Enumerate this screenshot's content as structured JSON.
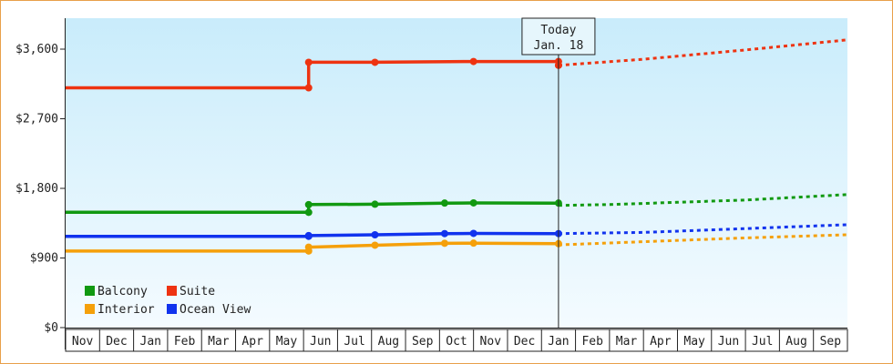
{
  "chart_data": {
    "type": "line",
    "title": "",
    "xlabel": "",
    "ylabel": "",
    "ylim": [
      0,
      4000
    ],
    "yticks": [
      {
        "value": 0,
        "label": "$0"
      },
      {
        "value": 900,
        "label": "$900"
      },
      {
        "value": 1800,
        "label": "$1,800"
      },
      {
        "value": 2700,
        "label": "$2,700"
      },
      {
        "value": 3600,
        "label": "$3,600"
      }
    ],
    "months": [
      "Nov",
      "Dec",
      "Jan",
      "Feb",
      "Mar",
      "Apr",
      "May",
      "Jun",
      "Jul",
      "Aug",
      "Sep",
      "Oct",
      "Nov",
      "Dec",
      "Jan",
      "Feb",
      "Mar",
      "Apr",
      "May",
      "Jun",
      "Jul",
      "Aug",
      "Sep"
    ],
    "today": {
      "line1": "Today",
      "line2": "Jan. 18",
      "x": 14.5
    },
    "legend_position": "bottom-left",
    "grid": false,
    "series": [
      {
        "name": "Balcony",
        "color": "#119911",
        "points": [
          [
            0,
            1490
          ],
          [
            7.15,
            1490
          ],
          [
            7.15,
            1590
          ],
          [
            9.1,
            1595
          ],
          [
            11.15,
            1610
          ],
          [
            12,
            1612
          ],
          [
            14.5,
            1610
          ]
        ],
        "markers": [
          [
            7.15,
            1490
          ],
          [
            7.15,
            1590
          ],
          [
            9.1,
            1595
          ],
          [
            11.15,
            1610
          ],
          [
            12,
            1612
          ],
          [
            14.5,
            1610
          ]
        ],
        "forecast": [
          [
            14.5,
            1580
          ],
          [
            16,
            1590
          ],
          [
            18,
            1620
          ],
          [
            20,
            1650
          ],
          [
            23,
            1720
          ]
        ]
      },
      {
        "name": "Suite",
        "color": "#ee3311",
        "points": [
          [
            0,
            3100
          ],
          [
            7.15,
            3100
          ],
          [
            7.15,
            3430
          ],
          [
            9.1,
            3430
          ],
          [
            12,
            3440
          ],
          [
            14.5,
            3440
          ]
        ],
        "markers": [
          [
            7.15,
            3100
          ],
          [
            7.15,
            3430
          ],
          [
            9.1,
            3430
          ],
          [
            12,
            3440
          ],
          [
            14.5,
            3440
          ],
          [
            14.5,
            3390
          ]
        ],
        "forecast": [
          [
            14.5,
            3390
          ],
          [
            17,
            3470
          ],
          [
            20,
            3590
          ],
          [
            23,
            3720
          ]
        ]
      },
      {
        "name": "Interior",
        "color": "#f5a00a",
        "points": [
          [
            0,
            990
          ],
          [
            7.15,
            990
          ],
          [
            7.15,
            1040
          ],
          [
            9.1,
            1065
          ],
          [
            11.15,
            1090
          ],
          [
            12,
            1092
          ],
          [
            14.5,
            1085
          ]
        ],
        "markers": [
          [
            7.15,
            990
          ],
          [
            7.15,
            1040
          ],
          [
            9.1,
            1065
          ],
          [
            11.15,
            1090
          ],
          [
            12,
            1092
          ],
          [
            14.5,
            1085
          ]
        ],
        "forecast": [
          [
            14.5,
            1070
          ],
          [
            17,
            1110
          ],
          [
            20,
            1160
          ],
          [
            23,
            1200
          ]
        ]
      },
      {
        "name": "Ocean View",
        "color": "#1133ee",
        "points": [
          [
            0,
            1180
          ],
          [
            7.15,
            1180
          ],
          [
            7.15,
            1190
          ],
          [
            9.1,
            1200
          ],
          [
            11.15,
            1215
          ],
          [
            12,
            1218
          ],
          [
            14.5,
            1215
          ]
        ],
        "markers": [
          [
            7.15,
            1180
          ],
          [
            7.15,
            1190
          ],
          [
            9.1,
            1200
          ],
          [
            11.15,
            1215
          ],
          [
            12,
            1218
          ],
          [
            14.5,
            1215
          ]
        ],
        "forecast": [
          [
            14.5,
            1215
          ],
          [
            17,
            1230
          ],
          [
            20,
            1280
          ],
          [
            23,
            1330
          ]
        ]
      }
    ]
  }
}
